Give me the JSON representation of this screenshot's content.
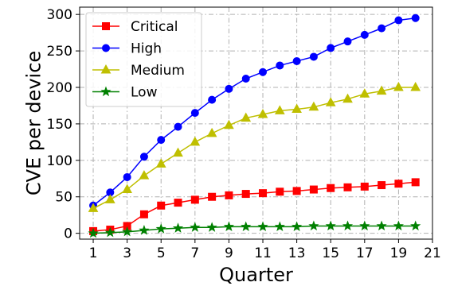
{
  "chart_data": {
    "type": "line",
    "title": "",
    "xlabel": "Quarter",
    "ylabel": "CVE per device",
    "xlim": [
      0.2,
      21
    ],
    "ylim": [
      -8,
      310
    ],
    "x_ticks": [
      1,
      3,
      5,
      7,
      9,
      11,
      13,
      15,
      17,
      19,
      21
    ],
    "y_ticks": [
      0,
      50,
      100,
      150,
      200,
      250,
      300
    ],
    "grid": true,
    "legend_position": "top-left",
    "x": [
      1,
      2,
      3,
      4,
      5,
      6,
      7,
      8,
      9,
      10,
      11,
      12,
      13,
      14,
      15,
      16,
      17,
      18,
      19,
      20
    ],
    "series": [
      {
        "name": "Critical",
        "color": "#ff0000",
        "marker": "square",
        "values": [
          3,
          5,
          10,
          26,
          38,
          42,
          46,
          50,
          52,
          54,
          55,
          57,
          58,
          60,
          62,
          63,
          64,
          66,
          68,
          70
        ]
      },
      {
        "name": "High",
        "color": "#0000ff",
        "marker": "circle",
        "values": [
          38,
          56,
          77,
          105,
          128,
          146,
          165,
          183,
          198,
          212,
          221,
          230,
          236,
          242,
          254,
          263,
          272,
          281,
          292,
          295
        ]
      },
      {
        "name": "Medium",
        "color": "#bfbf00",
        "marker": "triangle",
        "values": [
          34,
          46,
          60,
          79,
          95,
          110,
          125,
          137,
          148,
          158,
          163,
          168,
          170,
          173,
          179,
          184,
          191,
          195,
          200,
          200
        ]
      },
      {
        "name": "Low",
        "color": "#008000",
        "marker": "star",
        "values": [
          0,
          1,
          2,
          4,
          6,
          7,
          8,
          8,
          9,
          9,
          9,
          9,
          9,
          10,
          10,
          10,
          10,
          10,
          10,
          10
        ]
      }
    ]
  }
}
